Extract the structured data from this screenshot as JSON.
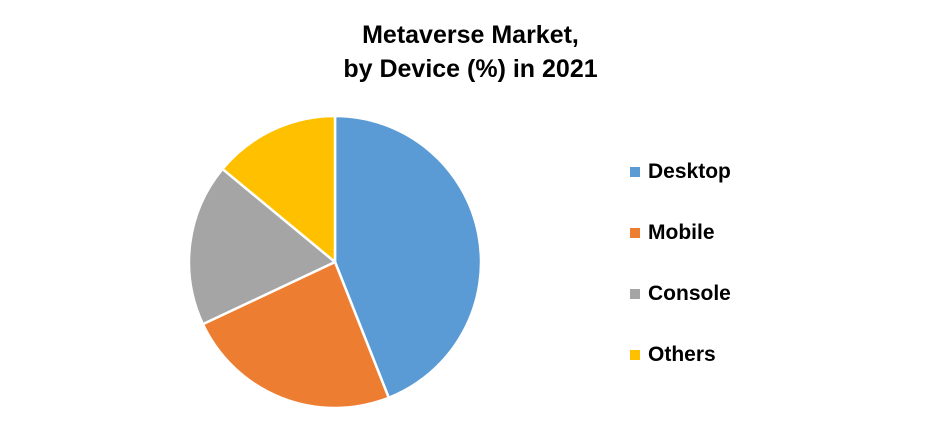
{
  "chart_data": {
    "type": "pie",
    "title": [
      "Metaverse Market,",
      "by Device (%) in 2021"
    ],
    "categories": [
      "Desktop",
      "Mobile",
      "Console",
      "Others"
    ],
    "values": [
      44,
      24,
      18,
      14
    ],
    "colors": [
      "#5B9BD5",
      "#ED7D31",
      "#A5A5A5",
      "#FFC000"
    ],
    "legend_position": "right",
    "data_labels": false
  }
}
